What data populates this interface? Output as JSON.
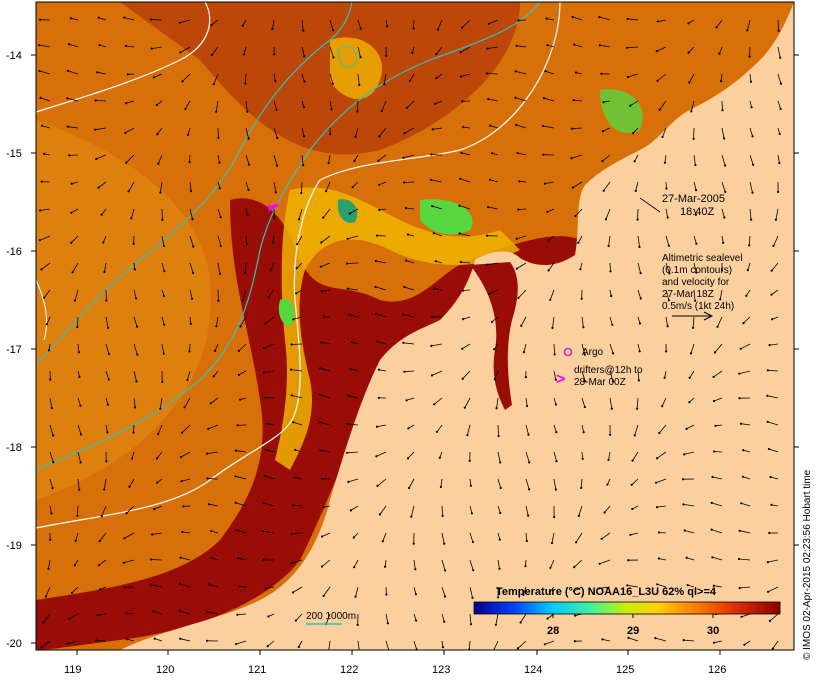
{
  "map": {
    "timestamp_line1": "27-Mar-2005",
    "timestamp_line2": "18:40Z",
    "altimetry_note": [
      "Altimetric sealevel",
      "(0.1m contours)",
      "and velocity for",
      "27-Mar 18Z",
      "0.5m/s (1kt 24h)"
    ],
    "legend": {
      "argo_label": "Argo",
      "argo_symbol": "o",
      "drifter_symbol": ">",
      "drifter_line1": "drifters@12h to",
      "drifter_line2": "28-Mar 00Z"
    },
    "isobath_label": "200  1000m",
    "credit": "© IMOS 02-Apr-2015 02:23:56 Hobart time"
  },
  "axes": {
    "x_ticks": [
      "119",
      "120",
      "121",
      "122",
      "123",
      "124",
      "125",
      "126"
    ],
    "y_ticks": [
      "-14",
      "-15",
      "-16",
      "-17",
      "-18",
      "-19",
      "-20"
    ]
  },
  "colorbar": {
    "title": "Temperature (°C) NOAA16_L3U 62% ql>=4",
    "tick_labels": [
      "28",
      "29",
      "30"
    ]
  },
  "colors": {
    "land": "#fccf9e",
    "warm_sst": "#9a0d06",
    "mid_sst": "#d8700a",
    "cool_sst": "#f0b400",
    "coolest_sst": "#58d640",
    "isobath_200": "#36c0b8",
    "isobath_1000": "#ffffff",
    "argo": "#d820d8",
    "drifter": "#ff00ff"
  }
}
